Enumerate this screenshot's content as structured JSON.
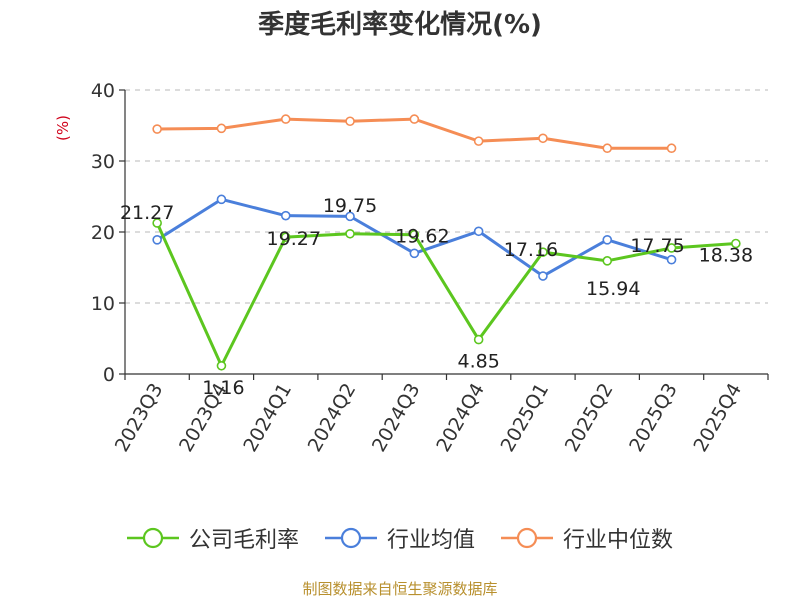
{
  "chart_data": {
    "type": "line",
    "title": "季度毛利率变化情况(%)",
    "ylabel": "(%)",
    "ylim": [
      0,
      40
    ],
    "yticks": [
      0,
      10,
      20,
      30,
      40
    ],
    "grid": true,
    "legend_position": "bottom",
    "categories": [
      "2023Q3",
      "2023Q4",
      "2024Q1",
      "2024Q2",
      "2024Q3",
      "2024Q4",
      "2025Q1",
      "2025Q2",
      "2025Q3",
      "2025Q4"
    ],
    "series": [
      {
        "name": "公司毛利率",
        "color": "#5cc61f",
        "values": [
          21.27,
          1.16,
          19.27,
          19.75,
          19.62,
          4.85,
          17.16,
          15.94,
          17.75,
          18.38
        ],
        "labels": [
          "21.27",
          "1.16",
          "19.27",
          "19.75",
          "19.62",
          "4.85",
          "17.16",
          "15.94",
          "17.75",
          "18.38"
        ]
      },
      {
        "name": "行业均值",
        "color": "#4a7fdb",
        "values": [
          18.9,
          24.6,
          22.3,
          22.2,
          17.0,
          20.1,
          13.8,
          18.9,
          16.1,
          null
        ]
      },
      {
        "name": "行业中位数",
        "color": "#f58d55",
        "values": [
          34.5,
          34.6,
          35.9,
          35.6,
          35.9,
          32.8,
          33.2,
          31.8,
          31.8,
          null
        ]
      }
    ]
  },
  "footer": {
    "source": "制图数据来自恒生聚源数据库"
  }
}
